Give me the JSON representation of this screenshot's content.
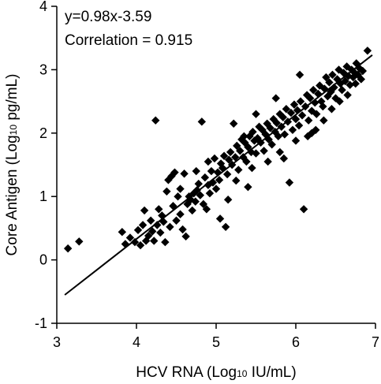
{
  "chart_data": {
    "type": "scatter",
    "title": "",
    "xlabel_main": "HCV RNA (Log",
    "xlabel_sub": "10",
    "xlabel_unit": " IU/mL)",
    "ylabel_main": "Core Antigen (Log",
    "ylabel_sub": "10",
    "ylabel_unit": " pg/mL)",
    "xlim": [
      3,
      7
    ],
    "ylim": [
      -1,
      4
    ],
    "xticks": [
      3,
      4,
      5,
      6,
      7
    ],
    "xtick_labels": [
      "3",
      "4",
      "5",
      "6",
      "7"
    ],
    "yticks": [
      -1,
      0,
      1,
      2,
      3,
      4
    ],
    "ytick_labels": [
      "-1",
      "0",
      "1",
      "2",
      "3",
      "4"
    ],
    "grid": false,
    "annotations": [
      "y=0.98x-3.59",
      "Correlation = 0.915"
    ],
    "fit_line": {
      "slope": 0.98,
      "intercept": -3.59,
      "x_range": [
        3.1,
        6.96
      ]
    },
    "marker_color": "#000000",
    "points": [
      [
        3.14,
        0.18
      ],
      [
        3.28,
        0.29
      ],
      [
        3.82,
        0.44
      ],
      [
        3.86,
        0.25
      ],
      [
        3.92,
        0.35
      ],
      [
        3.98,
        0.28
      ],
      [
        4.02,
        0.47
      ],
      [
        4.05,
        0.23
      ],
      [
        4.08,
        0.55
      ],
      [
        4.1,
        0.78
      ],
      [
        4.12,
        0.3
      ],
      [
        4.15,
        0.38
      ],
      [
        4.18,
        0.62
      ],
      [
        4.2,
        0.45
      ],
      [
        4.22,
        0.3
      ],
      [
        4.24,
        2.2
      ],
      [
        4.26,
        0.55
      ],
      [
        4.28,
        0.8
      ],
      [
        4.3,
        0.43
      ],
      [
        4.32,
        0.7
      ],
      [
        4.34,
        0.6
      ],
      [
        4.36,
        0.28
      ],
      [
        4.38,
        1.08
      ],
      [
        4.4,
        1.26
      ],
      [
        4.42,
        0.52
      ],
      [
        4.44,
        1.32
      ],
      [
        4.46,
        0.85
      ],
      [
        4.48,
        1.38
      ],
      [
        4.5,
        0.62
      ],
      [
        4.52,
        1.0
      ],
      [
        4.55,
        0.72
      ],
      [
        4.58,
        0.48
      ],
      [
        4.6,
        1.36
      ],
      [
        4.62,
        0.37
      ],
      [
        4.64,
        0.88
      ],
      [
        4.66,
        1.0
      ],
      [
        4.68,
        0.95
      ],
      [
        4.7,
        0.78
      ],
      [
        4.72,
        1.05
      ],
      [
        4.74,
        0.92
      ],
      [
        4.76,
        1.1
      ],
      [
        4.78,
        1.2
      ],
      [
        4.8,
        1.02
      ],
      [
        4.82,
        2.18
      ],
      [
        4.84,
        0.88
      ],
      [
        4.86,
        1.3
      ],
      [
        4.88,
        0.8
      ],
      [
        4.9,
        1.18
      ],
      [
        4.92,
        1.05
      ],
      [
        4.94,
        1.4
      ],
      [
        4.96,
        1.22
      ],
      [
        4.98,
        1.6
      ],
      [
        5.0,
        1.12
      ],
      [
        5.02,
        1.38
      ],
      [
        5.04,
        1.26
      ],
      [
        5.06,
        1.52
      ],
      [
        5.08,
        1.45
      ],
      [
        5.1,
        1.64
      ],
      [
        5.12,
        0.52
      ],
      [
        5.14,
        1.35
      ],
      [
        5.16,
        1.58
      ],
      [
        5.18,
        1.7
      ],
      [
        5.2,
        1.5
      ],
      [
        5.22,
        2.15
      ],
      [
        5.24,
        1.62
      ],
      [
        5.26,
        1.8
      ],
      [
        5.28,
        1.42
      ],
      [
        5.3,
        1.72
      ],
      [
        5.32,
        1.9
      ],
      [
        5.34,
        1.62
      ],
      [
        5.36,
        1.85
      ],
      [
        5.38,
        1.55
      ],
      [
        5.4,
        1.78
      ],
      [
        5.42,
        1.95
      ],
      [
        5.44,
        1.7
      ],
      [
        5.46,
        2.02
      ],
      [
        5.48,
        1.88
      ],
      [
        5.5,
        1.68
      ],
      [
        5.52,
        1.92
      ],
      [
        5.54,
        2.1
      ],
      [
        5.56,
        1.85
      ],
      [
        5.58,
        2.05
      ],
      [
        5.6,
        1.72
      ],
      [
        5.62,
        1.98
      ],
      [
        5.64,
        2.15
      ],
      [
        5.66,
        1.9
      ],
      [
        5.68,
        2.08
      ],
      [
        5.7,
        1.82
      ],
      [
        5.72,
        2.22
      ],
      [
        5.74,
        2.02
      ],
      [
        5.76,
        2.16
      ],
      [
        5.78,
        1.95
      ],
      [
        5.8,
        2.3
      ],
      [
        5.82,
        2.1
      ],
      [
        5.84,
        2.25
      ],
      [
        5.86,
        1.98
      ],
      [
        5.88,
        2.38
      ],
      [
        5.9,
        2.18
      ],
      [
        5.92,
        1.22
      ],
      [
        5.94,
        2.32
      ],
      [
        5.96,
        2.05
      ],
      [
        5.98,
        2.45
      ],
      [
        6.0,
        2.22
      ],
      [
        6.02,
        2.36
      ],
      [
        6.04,
        2.12
      ],
      [
        6.06,
        2.5
      ],
      [
        6.08,
        2.28
      ],
      [
        6.1,
        0.8
      ],
      [
        6.12,
        2.42
      ],
      [
        6.14,
        2.6
      ],
      [
        6.16,
        2.2
      ],
      [
        6.18,
        2.55
      ],
      [
        6.2,
        2.35
      ],
      [
        6.22,
        2.68
      ],
      [
        6.24,
        2.48
      ],
      [
        6.26,
        2.3
      ],
      [
        6.28,
        2.62
      ],
      [
        6.3,
        2.75
      ],
      [
        6.32,
        2.5
      ],
      [
        6.34,
        2.42
      ],
      [
        6.36,
        2.7
      ],
      [
        6.38,
        2.88
      ],
      [
        6.4,
        2.58
      ],
      [
        6.42,
        2.8
      ],
      [
        6.44,
        2.65
      ],
      [
        6.46,
        2.92
      ],
      [
        6.48,
        2.72
      ],
      [
        6.5,
        2.55
      ],
      [
        6.52,
        2.85
      ],
      [
        6.54,
        3.0
      ],
      [
        6.56,
        2.78
      ],
      [
        6.58,
        2.68
      ],
      [
        6.6,
        2.95
      ],
      [
        6.62,
        2.82
      ],
      [
        6.64,
        3.05
      ],
      [
        6.66,
        2.9
      ],
      [
        6.68,
        2.76
      ],
      [
        6.7,
        3.0
      ],
      [
        6.72,
        2.88
      ],
      [
        6.74,
        2.95
      ],
      [
        6.76,
        3.1
      ],
      [
        6.78,
        2.92
      ],
      [
        6.8,
        3.02
      ],
      [
        6.82,
        2.85
      ],
      [
        6.84,
        2.98
      ],
      [
        6.9,
        3.3
      ],
      [
        5.05,
        0.65
      ],
      [
        4.9,
        1.55
      ],
      [
        5.35,
        1.95
      ],
      [
        5.65,
        1.55
      ],
      [
        5.8,
        1.7
      ],
      [
        6.0,
        1.88
      ],
      [
        6.15,
        1.95
      ],
      [
        6.25,
        2.05
      ],
      [
        6.35,
        2.2
      ],
      [
        6.45,
        2.38
      ],
      [
        6.55,
        2.5
      ],
      [
        6.05,
        2.92
      ],
      [
        5.75,
        2.55
      ],
      [
        5.5,
        2.3
      ],
      [
        5.25,
        1.25
      ],
      [
        5.45,
        1.45
      ],
      [
        5.85,
        1.6
      ],
      [
        6.2,
        2.0
      ],
      [
        4.55,
        1.12
      ],
      [
        4.75,
        1.4
      ],
      [
        5.15,
        0.95
      ],
      [
        5.4,
        1.15
      ],
      [
        6.65,
        2.6
      ],
      [
        6.75,
        2.78
      ]
    ]
  }
}
